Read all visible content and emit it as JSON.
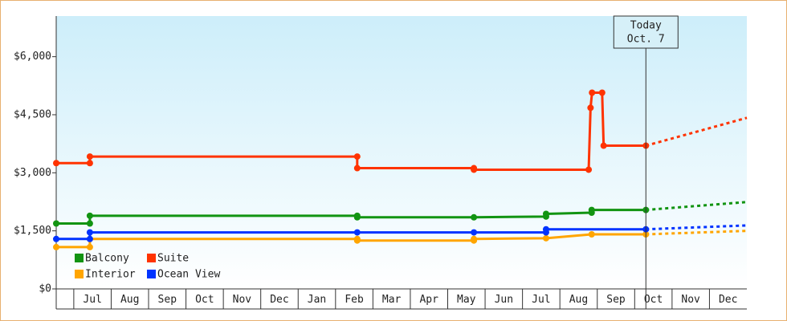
{
  "chart_data": {
    "type": "line",
    "xlim": [
      -0.47,
      18
    ],
    "ylim": [
      0,
      7050
    ],
    "yticks": [
      {
        "value": 0,
        "label": "$0"
      },
      {
        "value": 1500,
        "label": "$1,500"
      },
      {
        "value": 3000,
        "label": "$3,000"
      },
      {
        "value": 4500,
        "label": "$4,500"
      },
      {
        "value": 6000,
        "label": "$6,000"
      }
    ],
    "xticks": [
      {
        "value": 0.5,
        "label": "Jul"
      },
      {
        "value": 1.5,
        "label": "Aug"
      },
      {
        "value": 2.5,
        "label": "Sep"
      },
      {
        "value": 3.5,
        "label": "Oct"
      },
      {
        "value": 4.5,
        "label": "Nov"
      },
      {
        "value": 5.5,
        "label": "Dec"
      },
      {
        "value": 6.5,
        "label": "Jan"
      },
      {
        "value": 7.5,
        "label": "Feb"
      },
      {
        "value": 8.5,
        "label": "Mar"
      },
      {
        "value": 9.5,
        "label": "Apr"
      },
      {
        "value": 10.5,
        "label": "May"
      },
      {
        "value": 11.5,
        "label": "Jun"
      },
      {
        "value": 12.5,
        "label": "Jul"
      },
      {
        "value": 13.5,
        "label": "Aug"
      },
      {
        "value": 14.5,
        "label": "Sep"
      },
      {
        "value": 15.5,
        "label": "Oct"
      },
      {
        "value": 16.5,
        "label": "Nov"
      },
      {
        "value": 17.5,
        "label": "Dec"
      }
    ],
    "today_x": 15.3,
    "today_label": [
      "Today",
      "Oct. 7"
    ],
    "forecast_x": 18,
    "legend": "lower-left",
    "series": [
      {
        "name": "Balcony",
        "color": "#129412",
        "x": [
          -0.47,
          0.43,
          0.43,
          7.58,
          7.58,
          10.7,
          12.63,
          12.63,
          13.85,
          13.85,
          15.3
        ],
        "values": [
          1690,
          1690,
          1890,
          1890,
          1850,
          1850,
          1870,
          1940,
          1970,
          2040,
          2040
        ],
        "forecast_value": 2245
      },
      {
        "name": "Suite",
        "color": "#ff3300",
        "x": [
          -0.47,
          0.43,
          0.43,
          7.58,
          7.58,
          10.7,
          10.7,
          13.77,
          13.82,
          13.86,
          14.13,
          14.17,
          15.3
        ],
        "values": [
          3250,
          3250,
          3420,
          3420,
          3120,
          3120,
          3080,
          3080,
          4680,
          5070,
          5070,
          3700,
          3700
        ],
        "forecast_value": 4420
      },
      {
        "name": "Interior",
        "color": "#ffa500",
        "x": [
          -0.47,
          0.43,
          0.43,
          7.58,
          7.58,
          10.7,
          10.7,
          12.63,
          13.85,
          15.3
        ],
        "values": [
          1080,
          1080,
          1290,
          1290,
          1250,
          1250,
          1290,
          1310,
          1410,
          1410
        ],
        "forecast_value": 1500
      },
      {
        "name": "Ocean View",
        "color": "#0033ff",
        "x": [
          -0.47,
          0.43,
          0.43,
          7.58,
          10.7,
          12.63,
          12.63,
          15.3
        ],
        "values": [
          1290,
          1290,
          1460,
          1460,
          1460,
          1460,
          1540,
          1540
        ],
        "forecast_value": 1640
      }
    ]
  }
}
